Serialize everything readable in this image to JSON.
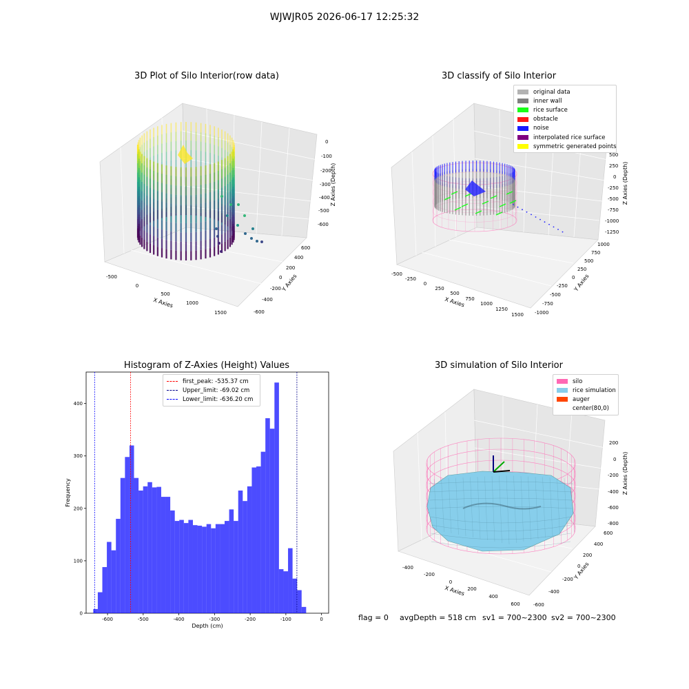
{
  "suptitle": "WJWJR05 2026-06-17 12:25:32",
  "panels": {
    "raw": {
      "title": "3D Plot of Silo Interior(row data)",
      "xlabel": "X Axies",
      "ylabel": "Y Axies",
      "zlabel": "Z Axies (Depth)",
      "xticks": [
        "-500",
        "0",
        "500",
        "1000",
        "1500"
      ],
      "yticks": [
        "-600",
        "-400",
        "-200",
        "0",
        "200",
        "400",
        "600"
      ],
      "zticks": [
        "0",
        "-100",
        "-200",
        "-300",
        "-400",
        "-500",
        "-600"
      ]
    },
    "classify": {
      "title": "3D classify of Silo Interior",
      "xlabel": "X Axies",
      "ylabel": "Y Axies",
      "zlabel": "Z Axies (Depth)",
      "xticks": [
        "-500",
        "-250",
        "0",
        "250",
        "500",
        "750",
        "1000",
        "1250",
        "1500"
      ],
      "yticks": [
        "-1000",
        "-750",
        "-500",
        "-250",
        "0",
        "250",
        "500",
        "750",
        "1000"
      ],
      "zticks": [
        "500",
        "250",
        "0",
        "-250",
        "-500",
        "-750",
        "-1000",
        "-1250"
      ],
      "legend": [
        {
          "label": "original data",
          "color": "#b3b3b3"
        },
        {
          "label": "inner wall",
          "color": "#808080"
        },
        {
          "label": "rice surface",
          "color": "#19ff19"
        },
        {
          "label": "obstacle",
          "color": "#ff1919"
        },
        {
          "label": "noise",
          "color": "#1919ff"
        },
        {
          "label": "interpolated rice surface",
          "color": "#800080"
        },
        {
          "label": "symmetric generated points",
          "color": "#ffff00"
        }
      ]
    },
    "simulation": {
      "title": "3D simulation of Silo Interior",
      "xlabel": "X Axies",
      "ylabel": "Y Axies",
      "zlabel": "Z Axies (Depth)",
      "xticks": [
        "-400",
        "-200",
        "0",
        "200",
        "400",
        "600"
      ],
      "yticks": [
        "-600",
        "-400",
        "-200",
        "0",
        "200",
        "400",
        "600"
      ],
      "zticks": [
        "200",
        "0",
        "-200",
        "-400",
        "-600",
        "-800"
      ],
      "legend": [
        {
          "label": "silo",
          "color": "#ff69b4"
        },
        {
          "label": "rice simulation",
          "color": "#87ceeb"
        },
        {
          "label": "auger",
          "color": "#ff4500"
        },
        {
          "label": "center(80,0)",
          "color": "#ffffff"
        }
      ]
    }
  },
  "chart_data": {
    "type": "bar",
    "title": "Histogram of Z-Axies (Height) Values",
    "xlabel": "Depth (cm)",
    "ylabel": "Frequency",
    "xlim": [
      -660,
      20
    ],
    "ylim": [
      0,
      460
    ],
    "xticks": [
      -600,
      -500,
      -400,
      -300,
      -200,
      -100,
      0
    ],
    "yticks": [
      0,
      100,
      200,
      300,
      400
    ],
    "bin_width": 12.7,
    "bins_start": -640,
    "values": [
      8,
      40,
      88,
      136,
      120,
      180,
      258,
      298,
      320,
      258,
      234,
      242,
      250,
      240,
      241,
      222,
      222,
      196,
      176,
      178,
      172,
      178,
      168,
      167,
      165,
      170,
      162,
      170,
      170,
      176,
      198,
      176,
      234,
      214,
      242,
      278,
      280,
      308,
      372,
      352,
      440,
      84,
      80,
      124,
      66,
      44,
      12
    ],
    "color": "#0000ff",
    "vlines": [
      {
        "x": -535.37,
        "label": "first_peak: -535.37 cm",
        "color": "#ff0000"
      },
      {
        "x": -69.02,
        "label": "Upper_limit: -69.02 cm",
        "color": "#00008b"
      },
      {
        "x": -636.2,
        "label": "Lower_limit: -636.20 cm",
        "color": "#0000ff"
      }
    ],
    "legend_position": "top-center"
  },
  "footer": {
    "flag": "flag = 0",
    "avg": "avgDepth = 518 cm",
    "sv1": "sv1 = 700~2300",
    "sv2": "sv2 = 700~2300"
  }
}
